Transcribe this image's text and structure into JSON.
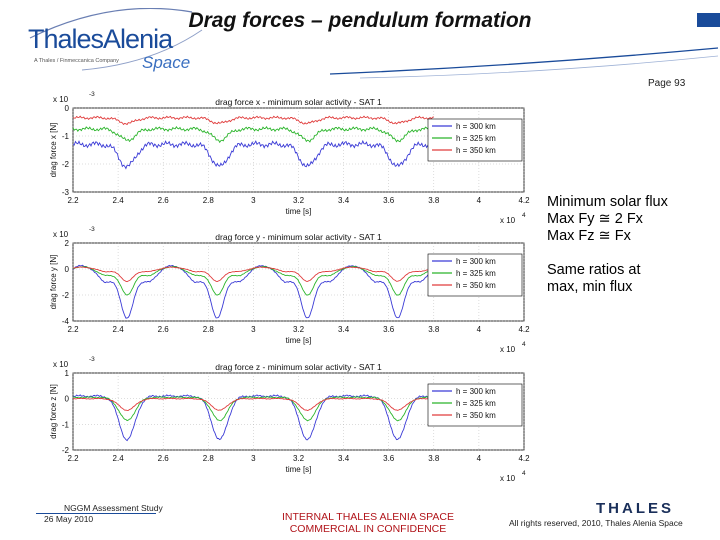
{
  "header": {
    "logo_main": "ThalesAlenia",
    "logo_tagline": "A Thales / Finmeccanica Company",
    "logo_space": "Space",
    "title": "Drag forces – pendulum formation",
    "page_label": "Page 93"
  },
  "colors": {
    "brand_blue": "#1a4b9a",
    "series_300": "#3b3bd6",
    "series_325": "#2bb52b",
    "series_350": "#e03c3c",
    "footer_red": "#b1141a"
  },
  "side_notes": {
    "line1": "Minimum solar flux",
    "line2": "Max Fy ≅ 2 Fx",
    "line3": "Max Fz ≅ Fx",
    "line4": "Same ratios at",
    "line5": "max, min flux"
  },
  "footer": {
    "left_line1": "NGGM Assessment Study",
    "left_line2": "26 May 2010",
    "center_line1": "INTERNAL THALES ALENIA SPACE",
    "center_line2": "COMMERCIAL IN CONFIDENCE",
    "right": "All rights reserved, 2010, Thales Alenia Space",
    "thales_logo": "THALES"
  },
  "chart_data": [
    {
      "type": "line",
      "title": "drag force x - minimum solar activity - SAT 1",
      "xlabel": "time [s]",
      "ylabel": "drag force x [N]",
      "y_exponent": "x 10",
      "y_exponent_power": "-3",
      "x_exponent": "x 10",
      "x_exponent_power": "4",
      "xlim": [
        2.2,
        4.2
      ],
      "ylim": [
        -3,
        0
      ],
      "xticks": [
        "2.2",
        "2.4",
        "2.6",
        "2.8",
        "3",
        "3.2",
        "3.4",
        "3.6",
        "3.8",
        "4",
        "4.2"
      ],
      "yticks": [
        "0",
        "-1",
        "-2",
        "-3"
      ],
      "legend_position": "right",
      "series": [
        {
          "name": "h = 300 km",
          "color": "#3b3bd6",
          "base": -1.3,
          "dip": 0.8,
          "noise": 0.12
        },
        {
          "name": "h = 325 km",
          "color": "#2bb52b",
          "base": -0.75,
          "dip": 0.4,
          "noise": 0.08
        },
        {
          "name": "h = 350 km",
          "color": "#e03c3c",
          "base": -0.35,
          "dip": 0.2,
          "noise": 0.06
        }
      ]
    },
    {
      "type": "line",
      "title": "drag force y - minimum solar activity - SAT 1",
      "xlabel": "time [s]",
      "ylabel": "drag force y [N]",
      "y_exponent": "x 10",
      "y_exponent_power": "-3",
      "x_exponent": "x 10",
      "x_exponent_power": "4",
      "xlim": [
        2.2,
        4.2
      ],
      "ylim": [
        -4,
        2
      ],
      "xticks": [
        "2.2",
        "2.4",
        "2.6",
        "2.8",
        "3",
        "3.2",
        "3.4",
        "3.6",
        "3.8",
        "4",
        "4.2"
      ],
      "yticks": [
        "2",
        "0",
        "-2",
        "-4"
      ],
      "legend_position": "right",
      "series": [
        {
          "name": "h = 300 km",
          "color": "#3b3bd6",
          "amp": 2.8,
          "offset": -1.0,
          "noise": 0.06
        },
        {
          "name": "h = 325 km",
          "color": "#2bb52b",
          "amp": 1.5,
          "offset": -0.5,
          "noise": 0.04
        },
        {
          "name": "h = 350 km",
          "color": "#e03c3c",
          "amp": 0.75,
          "offset": -0.2,
          "noise": 0.03
        }
      ]
    },
    {
      "type": "line",
      "title": "drag force z - minimum solar activity - SAT 1",
      "xlabel": "time [s]",
      "ylabel": "drag force z [N]",
      "y_exponent": "x 10",
      "y_exponent_power": "-3",
      "x_exponent": "x 10",
      "x_exponent_power": "4",
      "xlim": [
        2.2,
        4.2
      ],
      "ylim": [
        -2,
        1
      ],
      "xticks": [
        "2.2",
        "2.4",
        "2.6",
        "2.8",
        "3",
        "3.2",
        "3.4",
        "3.6",
        "3.8",
        "4",
        "4.2"
      ],
      "yticks": [
        "1",
        "0",
        "-1",
        "-2"
      ],
      "legend_position": "right",
      "series": [
        {
          "name": "h = 300 km",
          "color": "#3b3bd6",
          "base": 0.1,
          "dip": 1.7,
          "noise": 0.05
        },
        {
          "name": "h = 325 km",
          "color": "#2bb52b",
          "base": 0.05,
          "dip": 0.9,
          "noise": 0.03
        },
        {
          "name": "h = 350 km",
          "color": "#e03c3c",
          "base": 0.0,
          "dip": 0.45,
          "noise": 0.02
        }
      ]
    }
  ]
}
